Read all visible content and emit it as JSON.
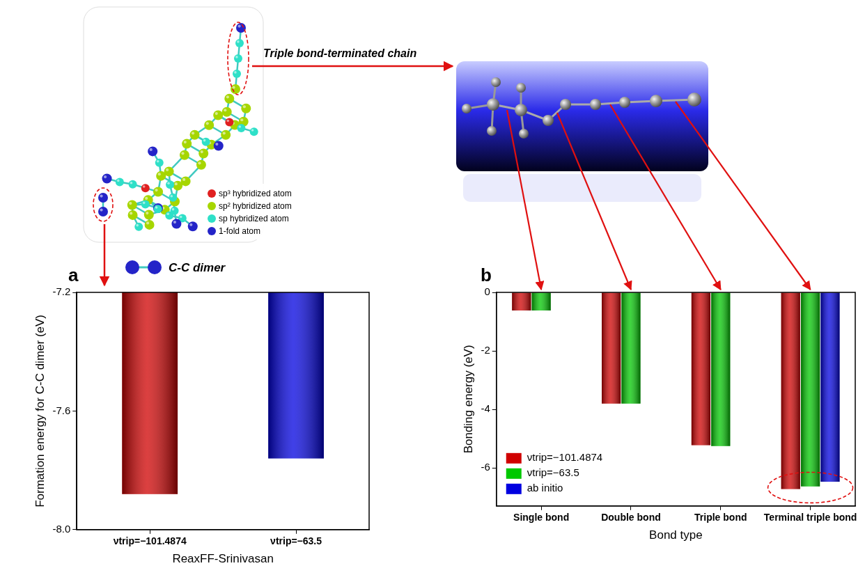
{
  "figure": {
    "structure_legend": [
      {
        "label": "sp³ hybridized atom",
        "color": "#e02020"
      },
      {
        "label": "sp² hybridized atom",
        "color": "#a6d600"
      },
      {
        "label": "sp hybridized atom",
        "color": "#2ee0c8"
      },
      {
        "label": "1-fold atom",
        "color": "#2424c8"
      }
    ],
    "chain_label": "Triple bond-terminated chain",
    "dimer_label": "C-C dimer"
  },
  "chart_data": [
    {
      "panel": "a",
      "type": "bar",
      "x_label": "ReaxFF-Srinivasan",
      "y_label": "Formation energy for C-C dimer (eV)",
      "categories": [
        "νtrip=−101.4874",
        "νtrip=−63.5"
      ],
      "values": [
        -7.88,
        -7.76
      ],
      "colors": [
        "#d00000",
        "#0000e0"
      ],
      "ylim": [
        -8.0,
        -7.2
      ],
      "yticks": [
        {
          "value": -8,
          "label": "-8.0"
        },
        -7.6,
        -7.2
      ],
      "grid": false
    },
    {
      "panel": "b",
      "type": "bar",
      "x_label": "Bond type",
      "y_label": "Bonding energy (eV)",
      "categories": [
        "Single bond",
        "Double bond",
        "Triple bond",
        "Terminal triple bond"
      ],
      "series": [
        {
          "name": "νtrip=−101.4874",
          "color": "#d00000",
          "values": [
            -0.62,
            -3.8,
            -5.22,
            -6.72
          ]
        },
        {
          "name": "νtrip=−63.5",
          "color": "#00c800",
          "values": [
            -0.62,
            -3.8,
            -5.25,
            -6.63
          ]
        },
        {
          "name": "ab initio",
          "color": "#0000e0",
          "values": [
            null,
            null,
            null,
            -6.47
          ]
        }
      ],
      "ylim": [
        -7.3,
        0
      ],
      "yticks": [
        -6,
        -4,
        -2,
        0
      ],
      "grid": false,
      "legend": "lower left"
    }
  ]
}
